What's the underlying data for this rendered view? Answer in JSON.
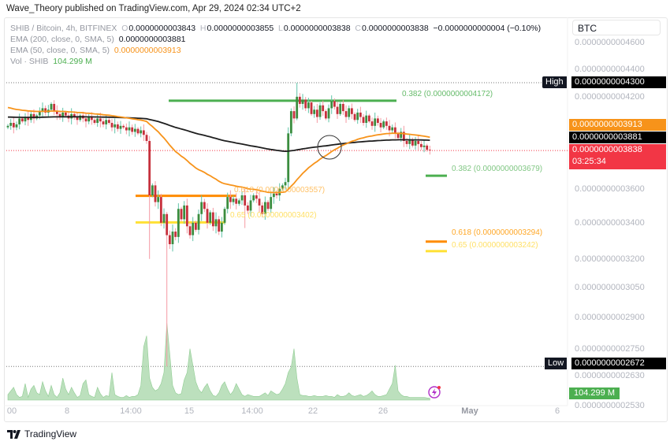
{
  "header": {
    "published": "Wave_Theory published on TradingView.com, Apr 29, 2024 02:34 UTC+2"
  },
  "legend": {
    "symbol": "SHIB / Bitcoin, 4h, BITFINEX",
    "o_label": "O",
    "o": "0.0000000003843",
    "h_label": "H",
    "h": "0.0000000003855",
    "l_label": "L",
    "l": "0.0000000003838",
    "c_label": "C",
    "c": "0.0000000003838",
    "change": "−0.0000000000004 (−0.10%)",
    "ema200_label": "EMA (200, close, 0, SMA, 5)",
    "ema200": "0.0000000003881",
    "ema50_label": "EMA (50, close, 0, SMA, 5)",
    "ema50": "0.0000000003913",
    "vol_label": "Vol · SHIB",
    "vol": "104.299 M"
  },
  "currency": "BTC",
  "price_axis": [
    "0.0000000004600",
    "0.0000000004400",
    "0.0000000004200",
    "0.0000000003600",
    "0.0000000003400",
    "0.0000000003200",
    "0.0000000003050",
    "0.0000000002900",
    "0.0000000002750",
    "0.0000000002630",
    "0.0000000002530"
  ],
  "badges": {
    "high_label": "High",
    "high": "0.0000000004300",
    "ema50": "0.0000000003913",
    "ema200": "0.0000000003881",
    "last": "0.0000000003838",
    "countdown": "03:25:34",
    "low_label": "Low",
    "low": "0.0000000002672",
    "volume": "104.299 M"
  },
  "fib_labels": {
    "top_382": "0.382 (0.0000000004172)",
    "mid_618": "0.618 (0.0000000003557)",
    "mid_65": "0.65 (0.0000000003402)",
    "right_382": "0.382 (0.0000000003679)",
    "right_618": "0.618 (0.0000000003294)",
    "right_65": "0.65 (0.0000000003242)"
  },
  "time_axis": [
    "00",
    "8",
    "14:00",
    "15",
    "14:00",
    "22",
    "26",
    "May",
    "6"
  ],
  "footer": {
    "brand": "TradingView"
  },
  "colors": {
    "up": "#3b8d3f",
    "down": "#c6303c",
    "up_wick": "#5fc4a8",
    "down_wick": "#f59aa3",
    "ema200": "#1e1e1e",
    "ema50": "#f7931a",
    "fib_green": "#4caf50",
    "fib_orange": "#ff8c00",
    "fib_yellow": "#ffe135",
    "volume": "#a5d6a7",
    "last_price": "#f23645",
    "alert": "#b02fc8"
  },
  "chart_data": {
    "type": "candlestick",
    "symbol": "SHIB / Bitcoin",
    "interval": "4h",
    "scale": "log",
    "high": 4.3e-10,
    "low": 2.672e-10,
    "first_open": 3.99e-10,
    "close": [
      4e-10,
      4.02e-10,
      3.99e-10,
      4.01e-10,
      4.05e-10,
      4.03e-10,
      4.06e-10,
      4.04e-10,
      4.08e-10,
      4.05e-10,
      4.07e-10,
      4.1e-10,
      4.12e-10,
      4.09e-10,
      4.11e-10,
      4.15e-10,
      4.1e-10,
      4.08e-10,
      4.06e-10,
      4.09e-10,
      4.07e-10,
      4.05e-10,
      4.08e-10,
      4.06e-10,
      4.04e-10,
      4.07e-10,
      4.05e-10,
      4.03e-10,
      4.06e-10,
      4.04e-10,
      4.02e-10,
      4.05e-10,
      4.03e-10,
      4.01e-10,
      4.04e-10,
      4.02e-10,
      3.99e-10,
      4.01e-10,
      3.98e-10,
      4e-10,
      3.99e-10,
      3.97e-10,
      3.99e-10,
      3.96e-10,
      3.98e-10,
      3.95e-10,
      3.97e-10,
      3.94e-10,
      3.9e-10,
      3.56e-10,
      3.62e-10,
      3.52e-10,
      3.55e-10,
      3.4e-10,
      3.45e-10,
      3.33e-10,
      3.28e-10,
      3.35e-10,
      3.32e-10,
      3.48e-10,
      3.42e-10,
      3.5e-10,
      3.38e-10,
      3.33e-10,
      3.4e-10,
      3.36e-10,
      3.45e-10,
      3.52e-10,
      3.48e-10,
      3.4e-10,
      3.46e-10,
      3.38e-10,
      3.42e-10,
      3.35e-10,
      3.4e-10,
      3.48e-10,
      3.55e-10,
      3.52e-10,
      3.54e-10,
      3.51e-10,
      3.53e-10,
      3.56e-10,
      3.5e-10,
      3.47e-10,
      3.53e-10,
      3.56e-10,
      3.54e-10,
      3.5e-10,
      3.45e-10,
      3.52e-10,
      3.48e-10,
      3.55e-10,
      3.57e-10,
      3.56e-10,
      3.6e-10,
      3.62e-10,
      3.64e-10,
      3.95e-10,
      4.1e-10,
      4.05e-10,
      4.2e-10,
      4.15e-10,
      4.18e-10,
      4.12e-10,
      4.16e-10,
      4.08e-10,
      4.11e-10,
      4.06e-10,
      4.14e-10,
      4.1e-10,
      4.05e-10,
      4.12e-10,
      4.17e-10,
      4.13e-10,
      4.08e-10,
      4.15e-10,
      4.1e-10,
      4.06e-10,
      4.12e-10,
      4.08e-10,
      4.04e-10,
      4.09e-10,
      4.06e-10,
      4.02e-10,
      4.07e-10,
      4.03e-10,
      4e-10,
      4.05e-10,
      4.02e-10,
      3.99e-10,
      4.03e-10,
      4e-10,
      3.97e-10,
      3.99e-10,
      3.95e-10,
      3.92e-10,
      3.96e-10,
      3.9e-10,
      3.88e-10,
      3.91e-10,
      3.87e-10,
      3.9e-10,
      3.88e-10,
      3.86e-10,
      3.87e-10,
      3.843e-10,
      3.838e-10
    ],
    "notable_wicks": [
      {
        "candle": 49,
        "low": 3.2e-10
      },
      {
        "candle": 55,
        "low": 2.672e-10
      },
      {
        "candle": 82,
        "low": 3.37e-10
      },
      {
        "candle": 100,
        "high": 4.3e-10
      }
    ],
    "volume_m": [
      300,
      500,
      700,
      300,
      150,
      200,
      900,
      150,
      600,
      800,
      400,
      300,
      1000,
      500,
      200,
      800,
      300,
      150,
      400,
      1200,
      600,
      300,
      700,
      400,
      150,
      250,
      900,
      1100,
      300,
      200,
      150,
      700,
      350,
      150,
      250,
      200,
      1500,
      300,
      200,
      150,
      150,
      250,
      150,
      200,
      200,
      300,
      800,
      2900,
      3500,
      1200,
      700,
      500,
      600,
      900,
      1500,
      4200,
      2500,
      800,
      400,
      300,
      350,
      1100,
      1500,
      2800,
      1900,
      1000,
      600,
      400,
      700,
      900,
      500,
      250,
      200,
      400,
      800,
      1000,
      600,
      300,
      500,
      900,
      600,
      300,
      200,
      300,
      250,
      200,
      200,
      200,
      300,
      400,
      250,
      500,
      400,
      300,
      350,
      600,
      900,
      1500,
      1800,
      2800,
      1200,
      300,
      250,
      250,
      200,
      200,
      250,
      200,
      200,
      200,
      250,
      200,
      200,
      150,
      300,
      200,
      200,
      250,
      400,
      250,
      200,
      250,
      300,
      200,
      250,
      350,
      500,
      300,
      200,
      200,
      250,
      300,
      600,
      900,
      1900,
      500,
      300,
      200,
      200,
      150,
      150,
      150,
      150,
      150,
      150,
      120,
      104.299
    ],
    "ema200_last": 3.881e-10,
    "ema50_last": 3.913e-10,
    "fib_levels": [
      {
        "ratio": 0.382,
        "price": 4.172e-10
      },
      {
        "ratio": 0.618,
        "price": 3.557e-10
      },
      {
        "ratio": 0.65,
        "price": 3.402e-10
      },
      {
        "ratio": 0.382,
        "price": 3.679e-10
      },
      {
        "ratio": 0.618,
        "price": 3.294e-10
      },
      {
        "ratio": 0.65,
        "price": 3.242e-10
      }
    ],
    "x_ticks": [
      "00",
      "8",
      "14:00",
      "15",
      "14:00",
      "22",
      "26",
      "May",
      "6"
    ],
    "y_ticks": [
      "0.0000000004600",
      "0.0000000004400",
      "0.0000000004200",
      "0.0000000003600",
      "0.0000000003400",
      "0.0000000003200",
      "0.0000000003050",
      "0.0000000002900",
      "0.0000000002750",
      "0.0000000002630",
      "0.0000000002530"
    ]
  }
}
